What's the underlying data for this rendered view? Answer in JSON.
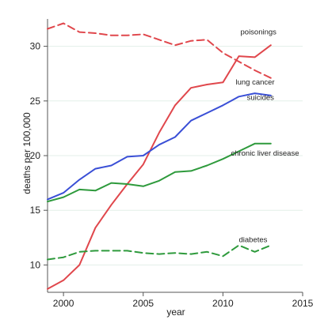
{
  "chart_data": {
    "type": "line",
    "title": "",
    "xlabel": "year",
    "ylabel": "deaths per 100,000",
    "xlim": [
      1999,
      2015
    ],
    "ylim": [
      7.5,
      32.5
    ],
    "xticks": [
      2000,
      2005,
      2010,
      2015
    ],
    "yticks": [
      10,
      15,
      20,
      25,
      30
    ],
    "gridlines": [
      10,
      15,
      20,
      25,
      30
    ],
    "x": [
      1999,
      2000,
      2001,
      2002,
      2003,
      2004,
      2005,
      2006,
      2007,
      2008,
      2009,
      2010,
      2011,
      2012,
      2013
    ],
    "series": [
      {
        "name": "poisonings",
        "color": "#e0474c",
        "dash": "solid",
        "values": [
          7.8,
          8.6,
          10.0,
          13.4,
          15.5,
          17.4,
          19.2,
          22.1,
          24.6,
          26.2,
          26.5,
          26.7,
          29.1,
          29.0,
          30.1
        ]
      },
      {
        "name": "lung cancer",
        "color": "#e0474c",
        "dash": "dashed",
        "values": [
          31.6,
          32.1,
          31.3,
          31.2,
          31.0,
          31.0,
          31.1,
          30.6,
          30.1,
          30.5,
          30.6,
          29.4,
          28.6,
          27.8,
          27.1
        ]
      },
      {
        "name": "suicides",
        "color": "#3a4fd6",
        "dash": "solid",
        "values": [
          16.0,
          16.6,
          17.8,
          18.8,
          19.1,
          19.9,
          20.0,
          21.0,
          21.7,
          23.2,
          23.9,
          24.6,
          25.4,
          25.7,
          25.5
        ]
      },
      {
        "name": "chronic liver disease",
        "color": "#2e9a3c",
        "dash": "solid",
        "values": [
          15.8,
          16.2,
          16.9,
          16.8,
          17.5,
          17.4,
          17.2,
          17.7,
          18.5,
          18.6,
          19.1,
          19.7,
          20.4,
          21.1,
          21.1
        ]
      },
      {
        "name": "diabetes",
        "color": "#2e9a3c",
        "dash": "dashed",
        "values": [
          10.5,
          10.7,
          11.2,
          11.3,
          11.3,
          11.3,
          11.1,
          11.0,
          11.1,
          11.0,
          11.2,
          10.8,
          11.8,
          11.2,
          11.8
        ]
      }
    ]
  }
}
